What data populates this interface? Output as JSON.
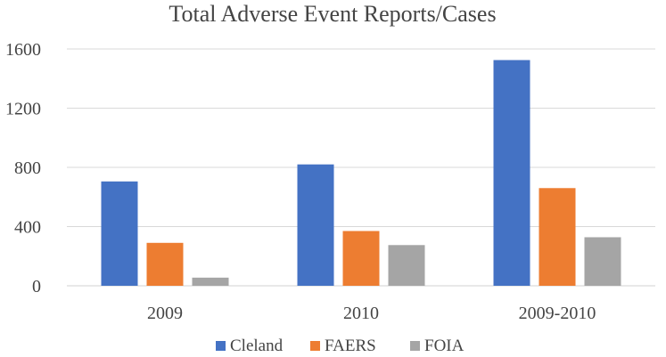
{
  "chart_data": {
    "type": "bar",
    "title": "Total Adverse Event Reports/Cases",
    "xlabel": "",
    "ylabel": "",
    "categories": [
      "2009",
      "2010",
      "2009-2010"
    ],
    "series": [
      {
        "name": "Cleland",
        "color": "#4472c4",
        "values": [
          705,
          820,
          1525
        ]
      },
      {
        "name": "FAERS",
        "color": "#ed7d31",
        "values": [
          290,
          370,
          660
        ]
      },
      {
        "name": "FOIA",
        "color": "#a5a5a5",
        "values": [
          55,
          275,
          328
        ]
      }
    ],
    "ylim": [
      0,
      1600
    ],
    "yticks": [
      0,
      400,
      800,
      1200,
      1600
    ],
    "grid": true,
    "legend_position": "bottom"
  }
}
